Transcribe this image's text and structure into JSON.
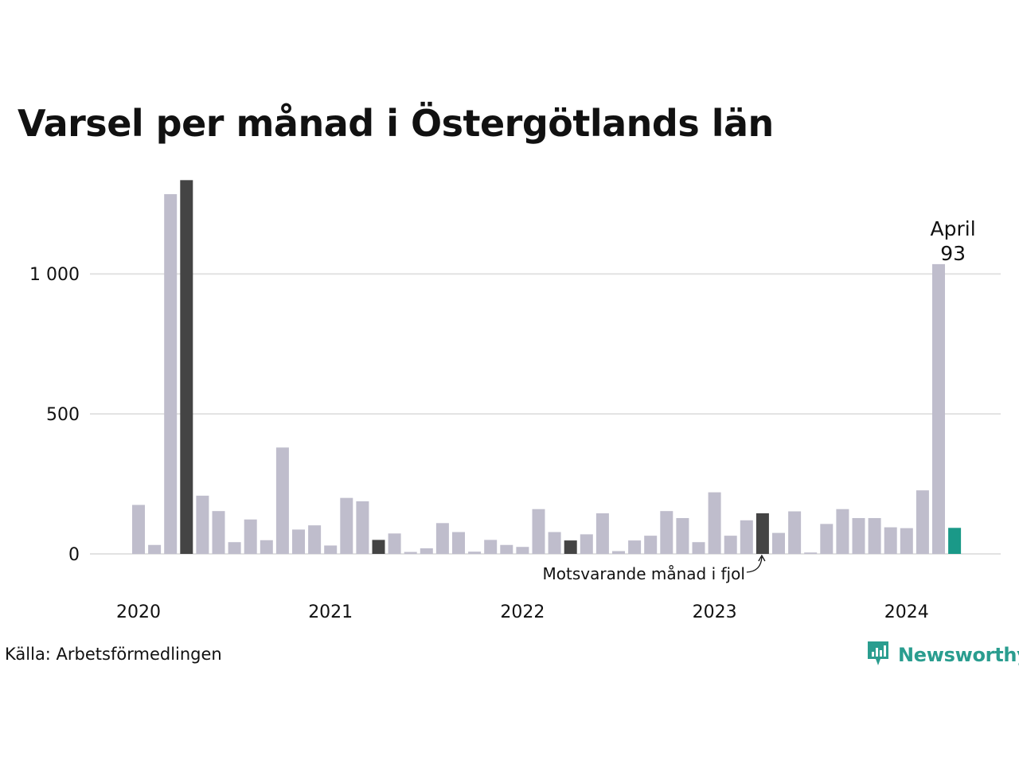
{
  "title": "Varsel per månad i Östergötlands län",
  "source": "Källa: Arbetsförmedlingen",
  "brand": {
    "name": "Newsworthy",
    "icon": "newsworthy-logo-icon"
  },
  "colors": {
    "bar": "#bfbdcc",
    "highlight": "#444444",
    "current": "#1a9988",
    "grid": "#e2e2e2",
    "brand": "#2a9d8f"
  },
  "chart_data": {
    "type": "bar",
    "title": "Varsel per månad i Östergötlands län",
    "x_tick_labels": [
      "2020",
      "2021",
      "2022",
      "2023",
      "2024"
    ],
    "y_tick_labels": [
      "0",
      "500",
      "1 000"
    ],
    "y_ticks": [
      0,
      500,
      1000
    ],
    "ylim": [
      0,
      1340
    ],
    "grid": true,
    "categories": [
      "2020-01",
      "2020-02",
      "2020-03",
      "2020-04",
      "2020-05",
      "2020-06",
      "2020-07",
      "2020-08",
      "2020-09",
      "2020-10",
      "2020-11",
      "2020-12",
      "2021-01",
      "2021-02",
      "2021-03",
      "2021-04",
      "2021-05",
      "2021-06",
      "2021-07",
      "2021-08",
      "2021-09",
      "2021-10",
      "2021-11",
      "2021-12",
      "2022-01",
      "2022-02",
      "2022-03",
      "2022-04",
      "2022-05",
      "2022-06",
      "2022-07",
      "2022-08",
      "2022-09",
      "2022-10",
      "2022-11",
      "2022-12",
      "2023-01",
      "2023-02",
      "2023-03",
      "2023-04",
      "2023-05",
      "2023-06",
      "2023-07",
      "2023-08",
      "2023-09",
      "2023-10",
      "2023-11",
      "2023-12",
      "2024-01",
      "2024-02",
      "2024-03",
      "2024-04"
    ],
    "values": [
      175,
      32,
      1285,
      1335,
      208,
      153,
      42,
      123,
      49,
      380,
      87,
      102,
      30,
      200,
      188,
      50,
      73,
      7,
      20,
      110,
      78,
      8,
      50,
      32,
      25,
      160,
      78,
      48,
      70,
      145,
      10,
      48,
      65,
      153,
      128,
      42,
      220,
      65,
      120,
      145,
      75,
      152,
      5,
      107,
      160,
      128,
      128,
      95,
      92,
      227,
      1035,
      93
    ],
    "highlight_categories": [
      "2020-04",
      "2021-04",
      "2022-04",
      "2023-04"
    ],
    "current_category": "2024-04",
    "annotations": {
      "current_label_month": "April",
      "current_label_value": "93",
      "last_year": "Motsvarande månad i fjol"
    }
  }
}
